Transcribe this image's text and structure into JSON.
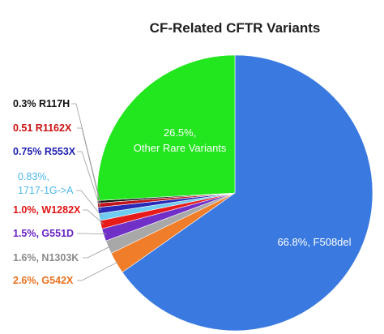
{
  "chart_data": {
    "type": "pie",
    "title": "CF-Related CFTR Variants",
    "start_angle_deg": 0,
    "direction": "clockwise",
    "slices": [
      {
        "name": "F508del",
        "value": 66.8,
        "color": "#3a7ae0",
        "label_lines": [
          "66.8%,  F508del"
        ]
      },
      {
        "name": "G542X",
        "value": 2.6,
        "color": "#ef7d2a",
        "label_lines": [
          "2.6%, G542X"
        ]
      },
      {
        "name": "N1303K",
        "value": 1.6,
        "color": "#a8a8a8",
        "label_lines": [
          "1.6%, N1303K"
        ]
      },
      {
        "name": "G551D",
        "value": 1.5,
        "color": "#7030c8",
        "label_lines": [
          "1.5%, G551D"
        ]
      },
      {
        "name": "W1282X",
        "value": 1.0,
        "color": "#e81b1b",
        "label_lines": [
          "1.0%, W1282X"
        ]
      },
      {
        "name": "1717-1G->A",
        "value": 0.83,
        "color": "#6ecdf0",
        "label_lines": [
          "0.83%,",
          "1717-1G->A"
        ]
      },
      {
        "name": "R553X",
        "value": 0.75,
        "color": "#2a2ab8",
        "label_lines": [
          "0.75% R553X"
        ]
      },
      {
        "name": "R1162X",
        "value": 0.51,
        "color": "#c0141c",
        "label_lines": [
          "0.51 R1162X"
        ]
      },
      {
        "name": "R117H",
        "value": 0.3,
        "color": "#111111",
        "label_lines": [
          "0.3% R117H"
        ]
      },
      {
        "name": "Other Rare Variants",
        "value": 26.5,
        "color": "#22e61e",
        "label_lines": [
          "26.5%,",
          "Other Rare Variants"
        ]
      }
    ],
    "label_colors": {
      "G542X": "#e8711f",
      "N1303K": "#8a8a8a",
      "G551D": "#6a24c4",
      "W1282X": "#e01515",
      "1717-1G->A": "#4cb8ec",
      "R553X": "#2020b0",
      "R1162X": "#cc1111",
      "R117H": "#111111"
    },
    "legend": "none",
    "grid": false
  }
}
